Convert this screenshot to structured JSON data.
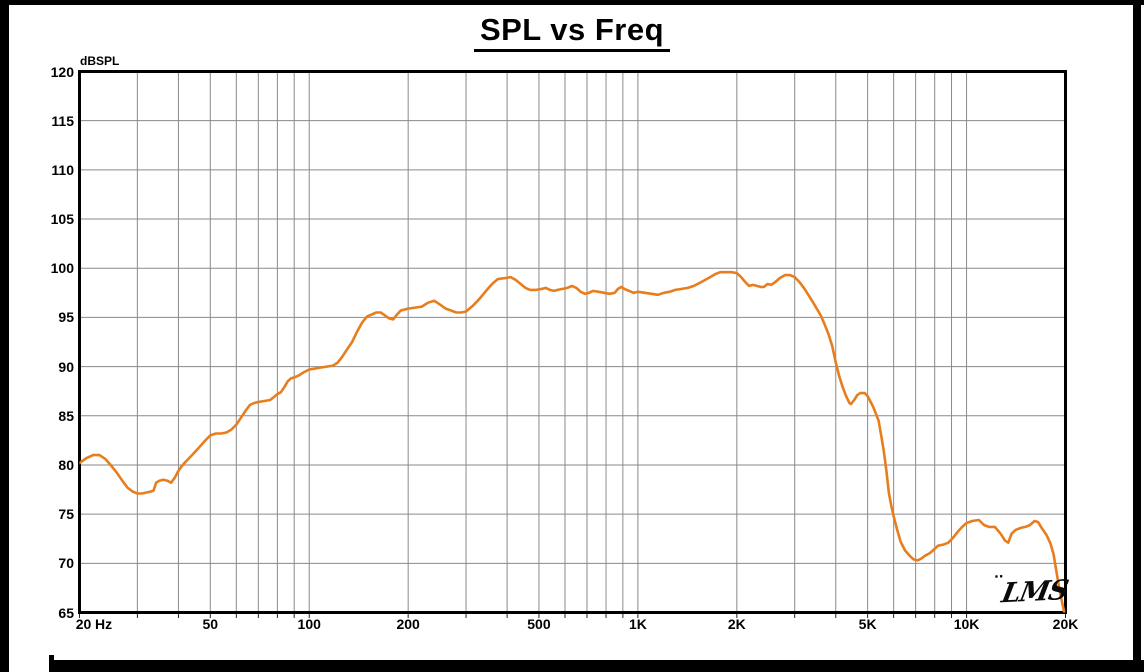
{
  "window": {
    "background": "#ffffff",
    "frame_color": "#000000"
  },
  "title": {
    "text": "SPL vs Freq"
  },
  "y_axis": {
    "unit_label": "dBSPL",
    "labels": [
      {
        "value": 120,
        "text": "120"
      },
      {
        "value": 115,
        "text": "115"
      },
      {
        "value": 110,
        "text": "110"
      },
      {
        "value": 105,
        "text": "105"
      },
      {
        "value": 100,
        "text": "100"
      },
      {
        "value": 95,
        "text": "95"
      },
      {
        "value": 90,
        "text": "90"
      },
      {
        "value": 85,
        "text": "85"
      },
      {
        "value": 80,
        "text": "80"
      },
      {
        "value": 75,
        "text": "75"
      },
      {
        "value": 70,
        "text": "70"
      },
      {
        "value": 65,
        "text": "65"
      }
    ]
  },
  "x_axis": {
    "unit_label": "Hz",
    "labels": [
      {
        "value": 20,
        "text": "20"
      },
      {
        "value": 50,
        "text": "50"
      },
      {
        "value": 100,
        "text": "100"
      },
      {
        "value": 200,
        "text": "200"
      },
      {
        "value": 500,
        "text": "500"
      },
      {
        "value": 1000,
        "text": "1K"
      },
      {
        "value": 2000,
        "text": "2K"
      },
      {
        "value": 5000,
        "text": "5K"
      },
      {
        "value": 10000,
        "text": "10K"
      },
      {
        "value": 20000,
        "text": "20K"
      }
    ]
  },
  "logo": {
    "marks": "¨",
    "text": "LMS"
  },
  "chart_data": {
    "type": "line",
    "x_scale": "log",
    "title": "SPL vs Freq",
    "ylabel": "dBSPL",
    "x_range_hz": [
      20,
      20000
    ],
    "y_range_db": [
      65,
      120
    ],
    "y_gridline_step_db": 5,
    "grid_color": "#8a8a8a",
    "frame_color": "#000000",
    "tick_color": "#222222",
    "x_gridlines_hz": [
      30,
      40,
      50,
      60,
      70,
      80,
      90,
      100,
      200,
      300,
      400,
      500,
      600,
      700,
      800,
      900,
      1000,
      2000,
      3000,
      4000,
      5000,
      6000,
      7000,
      8000,
      9000,
      10000
    ],
    "y_gridlines_db": [
      70,
      75,
      80,
      85,
      90,
      95,
      100,
      105,
      110,
      115
    ],
    "legend": "none",
    "series": [
      {
        "name": "SPL",
        "color": "#e87d1e",
        "points_hz_db": [
          [
            20,
            80.2
          ],
          [
            21,
            80.7
          ],
          [
            22,
            81.0
          ],
          [
            23,
            81.0
          ],
          [
            24,
            80.6
          ],
          [
            25,
            79.9
          ],
          [
            26,
            79.2
          ],
          [
            27,
            78.4
          ],
          [
            28,
            77.7
          ],
          [
            29,
            77.3
          ],
          [
            30,
            77.1
          ],
          [
            31,
            77.1
          ],
          [
            32,
            77.2
          ],
          [
            33,
            77.3
          ],
          [
            33.6,
            77.4
          ],
          [
            34.2,
            78.2
          ],
          [
            35,
            78.4
          ],
          [
            36,
            78.5
          ],
          [
            37,
            78.4
          ],
          [
            38,
            78.2
          ],
          [
            39,
            78.7
          ],
          [
            40,
            79.4
          ],
          [
            41,
            79.9
          ],
          [
            42,
            80.3
          ],
          [
            44,
            81.0
          ],
          [
            46,
            81.7
          ],
          [
            48,
            82.4
          ],
          [
            50,
            83.0
          ],
          [
            52,
            83.2
          ],
          [
            54,
            83.2
          ],
          [
            56,
            83.3
          ],
          [
            58,
            83.6
          ],
          [
            60,
            84.1
          ],
          [
            62,
            84.8
          ],
          [
            64,
            85.5
          ],
          [
            66,
            86.1
          ],
          [
            68,
            86.3
          ],
          [
            70,
            86.4
          ],
          [
            73,
            86.5
          ],
          [
            76,
            86.6
          ],
          [
            78,
            86.9
          ],
          [
            80,
            87.2
          ],
          [
            82,
            87.4
          ],
          [
            84,
            87.9
          ],
          [
            86,
            88.5
          ],
          [
            88,
            88.8
          ],
          [
            90,
            88.9
          ],
          [
            93,
            89.1
          ],
          [
            96,
            89.4
          ],
          [
            100,
            89.7
          ],
          [
            104,
            89.8
          ],
          [
            108,
            89.9
          ],
          [
            113,
            90.0
          ],
          [
            118,
            90.1
          ],
          [
            122,
            90.4
          ],
          [
            126,
            91.0
          ],
          [
            130,
            91.7
          ],
          [
            135,
            92.5
          ],
          [
            140,
            93.6
          ],
          [
            145,
            94.5
          ],
          [
            150,
            95.1
          ],
          [
            155,
            95.3
          ],
          [
            160,
            95.5
          ],
          [
            165,
            95.5
          ],
          [
            170,
            95.2
          ],
          [
            175,
            94.9
          ],
          [
            180,
            94.8
          ],
          [
            185,
            95.3
          ],
          [
            190,
            95.7
          ],
          [
            200,
            95.9
          ],
          [
            210,
            96.0
          ],
          [
            220,
            96.1
          ],
          [
            230,
            96.5
          ],
          [
            240,
            96.7
          ],
          [
            250,
            96.3
          ],
          [
            260,
            95.9
          ],
          [
            270,
            95.7
          ],
          [
            280,
            95.5
          ],
          [
            290,
            95.5
          ],
          [
            300,
            95.6
          ],
          [
            315,
            96.2
          ],
          [
            330,
            96.9
          ],
          [
            345,
            97.7
          ],
          [
            360,
            98.4
          ],
          [
            375,
            98.9
          ],
          [
            395,
            99.0
          ],
          [
            410,
            99.1
          ],
          [
            425,
            98.8
          ],
          [
            440,
            98.4
          ],
          [
            455,
            98.0
          ],
          [
            470,
            97.8
          ],
          [
            490,
            97.8
          ],
          [
            510,
            97.9
          ],
          [
            525,
            98.0
          ],
          [
            540,
            97.8
          ],
          [
            555,
            97.7
          ],
          [
            570,
            97.8
          ],
          [
            590,
            97.9
          ],
          [
            610,
            98.0
          ],
          [
            630,
            98.2
          ],
          [
            650,
            98.0
          ],
          [
            670,
            97.6
          ],
          [
            690,
            97.4
          ],
          [
            710,
            97.5
          ],
          [
            730,
            97.7
          ],
          [
            760,
            97.6
          ],
          [
            790,
            97.5
          ],
          [
            820,
            97.4
          ],
          [
            850,
            97.5
          ],
          [
            870,
            97.9
          ],
          [
            890,
            98.1
          ],
          [
            910,
            97.9
          ],
          [
            940,
            97.7
          ],
          [
            970,
            97.5
          ],
          [
            1000,
            97.6
          ],
          [
            1050,
            97.5
          ],
          [
            1100,
            97.4
          ],
          [
            1150,
            97.3
          ],
          [
            1200,
            97.5
          ],
          [
            1250,
            97.6
          ],
          [
            1300,
            97.8
          ],
          [
            1360,
            97.9
          ],
          [
            1420,
            98.0
          ],
          [
            1480,
            98.2
          ],
          [
            1540,
            98.5
          ],
          [
            1600,
            98.8
          ],
          [
            1660,
            99.1
          ],
          [
            1720,
            99.4
          ],
          [
            1780,
            99.6
          ],
          [
            1850,
            99.6
          ],
          [
            1930,
            99.6
          ],
          [
            2000,
            99.5
          ],
          [
            2060,
            99.1
          ],
          [
            2120,
            98.6
          ],
          [
            2180,
            98.2
          ],
          [
            2240,
            98.3
          ],
          [
            2300,
            98.2
          ],
          [
            2360,
            98.1
          ],
          [
            2420,
            98.1
          ],
          [
            2480,
            98.4
          ],
          [
            2540,
            98.3
          ],
          [
            2620,
            98.6
          ],
          [
            2700,
            99.0
          ],
          [
            2800,
            99.3
          ],
          [
            2900,
            99.3
          ],
          [
            3000,
            99.1
          ],
          [
            3100,
            98.6
          ],
          [
            3200,
            98.0
          ],
          [
            3300,
            97.3
          ],
          [
            3400,
            96.6
          ],
          [
            3500,
            95.9
          ],
          [
            3600,
            95.2
          ],
          [
            3700,
            94.3
          ],
          [
            3800,
            93.3
          ],
          [
            3900,
            92.1
          ],
          [
            4000,
            90.4
          ],
          [
            4100,
            89.0
          ],
          [
            4200,
            87.9
          ],
          [
            4300,
            87.0
          ],
          [
            4400,
            86.3
          ],
          [
            4450,
            86.2
          ],
          [
            4550,
            86.6
          ],
          [
            4650,
            87.1
          ],
          [
            4750,
            87.3
          ],
          [
            4900,
            87.3
          ],
          [
            5000,
            87.0
          ],
          [
            5200,
            85.9
          ],
          [
            5400,
            84.5
          ],
          [
            5500,
            83.0
          ],
          [
            5600,
            81.4
          ],
          [
            5700,
            79.5
          ],
          [
            5800,
            77.2
          ],
          [
            5900,
            75.9
          ],
          [
            6000,
            74.8
          ],
          [
            6150,
            73.4
          ],
          [
            6300,
            72.2
          ],
          [
            6500,
            71.3
          ],
          [
            6700,
            70.8
          ],
          [
            6900,
            70.4
          ],
          [
            7100,
            70.3
          ],
          [
            7300,
            70.5
          ],
          [
            7500,
            70.8
          ],
          [
            7700,
            71.0
          ],
          [
            7900,
            71.3
          ],
          [
            8200,
            71.8
          ],
          [
            8500,
            71.9
          ],
          [
            8800,
            72.1
          ],
          [
            9100,
            72.6
          ],
          [
            9400,
            73.2
          ],
          [
            9700,
            73.7
          ],
          [
            10000,
            74.1
          ],
          [
            10400,
            74.3
          ],
          [
            10900,
            74.4
          ],
          [
            11300,
            73.9
          ],
          [
            11700,
            73.7
          ],
          [
            12200,
            73.7
          ],
          [
            12700,
            73.0
          ],
          [
            13100,
            72.3
          ],
          [
            13400,
            72.1
          ],
          [
            13700,
            73.0
          ],
          [
            14100,
            73.4
          ],
          [
            14600,
            73.6
          ],
          [
            15100,
            73.7
          ],
          [
            15600,
            73.9
          ],
          [
            16100,
            74.3
          ],
          [
            16500,
            74.2
          ],
          [
            17000,
            73.5
          ],
          [
            17500,
            72.9
          ],
          [
            18000,
            72.0
          ],
          [
            18400,
            70.9
          ],
          [
            18800,
            69.0
          ],
          [
            19200,
            67.2
          ],
          [
            19600,
            65.8
          ],
          [
            20000,
            64.4
          ]
        ]
      }
    ]
  }
}
